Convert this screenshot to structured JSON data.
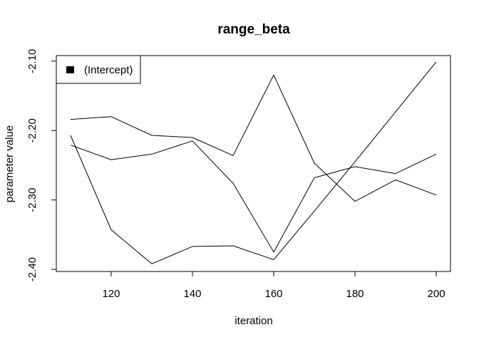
{
  "chart_data": {
    "type": "line",
    "title": "range_beta",
    "xlabel": "iteration",
    "ylabel": "parameter value",
    "x": [
      110,
      120,
      130,
      140,
      150,
      160,
      170,
      180,
      190,
      200
    ],
    "xticks": [
      120,
      140,
      160,
      180,
      200
    ],
    "xtick_labels": [
      "120",
      "140",
      "160",
      "180",
      "200"
    ],
    "yticks": [
      -2.4,
      -2.3,
      -2.2,
      -2.1
    ],
    "ytick_labels": [
      "-2.40",
      "-2.30",
      "-2.20",
      "-2.10"
    ],
    "xlim": [
      106.5,
      203.5
    ],
    "ylim": [
      -2.403,
      -2.092
    ],
    "grid": false,
    "legend": {
      "position": "top-left",
      "entries": [
        "(Intercept)"
      ]
    },
    "series": [
      {
        "color": "#000000",
        "values": [
          -2.184,
          -2.18,
          -2.207,
          -2.21,
          -2.236,
          -2.12,
          -2.247,
          -2.302,
          -2.271,
          -2.293
        ]
      },
      {
        "color": "#000000",
        "values": [
          -2.207,
          -2.343,
          -2.392,
          -2.367,
          -2.366,
          -2.386,
          -2.316,
          -2.245,
          -2.173,
          -2.101
        ]
      },
      {
        "color": "#000000",
        "values": [
          -2.221,
          -2.242,
          -2.234,
          -2.215,
          -2.276,
          -2.375,
          -2.268,
          -2.252,
          -2.262,
          -2.234
        ]
      }
    ]
  }
}
